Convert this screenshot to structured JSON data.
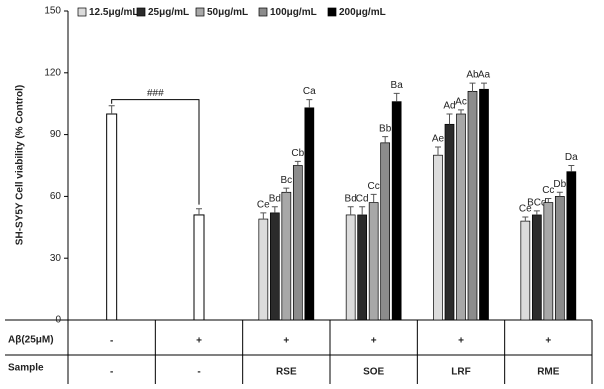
{
  "chart_data": {
    "type": "bar",
    "ylabel": "SH-SY5Y Cell viability (% Control)",
    "ylim": [
      0,
      150
    ],
    "yticks": [
      0,
      30,
      60,
      90,
      120,
      150
    ],
    "categories": [
      "-",
      "-",
      "RSE",
      "SOE",
      "LRF",
      "RME"
    ],
    "table": {
      "row_labels": [
        "Aβ(25μM)",
        "Sample"
      ],
      "abeta": [
        "-",
        "+",
        "+",
        "+",
        "+",
        "+"
      ]
    },
    "control": {
      "color": "#ffffff",
      "values": [
        100,
        51
      ],
      "errors": [
        4,
        3
      ]
    },
    "bracket_label": "###",
    "series": [
      {
        "name": "12.5μg/mL",
        "color": "#dcdcdc",
        "values": [
          null,
          null,
          49,
          51,
          80,
          48
        ],
        "errors": [
          null,
          null,
          3,
          4,
          4,
          2
        ],
        "letters": [
          null,
          null,
          "Ce",
          "Bd",
          "Ae",
          "Ce"
        ]
      },
      {
        "name": "25μg/mL",
        "color": "#2b2b2b",
        "values": [
          null,
          null,
          52,
          51,
          95,
          51
        ],
        "errors": [
          null,
          null,
          3,
          4,
          5,
          2
        ],
        "letters": [
          null,
          null,
          "Bd",
          "Cd",
          "Ad",
          "BCd"
        ]
      },
      {
        "name": "50μg/mL",
        "color": "#a8a8a8",
        "values": [
          null,
          null,
          62,
          57,
          100,
          57
        ],
        "errors": [
          null,
          null,
          2,
          4,
          2,
          2
        ],
        "letters": [
          null,
          null,
          "Bc",
          "Cc",
          "Ac",
          "Cc"
        ]
      },
      {
        "name": "100μg/mL",
        "color": "#8c8c8c",
        "values": [
          null,
          null,
          75,
          86,
          111,
          60
        ],
        "errors": [
          null,
          null,
          2,
          3,
          4,
          2
        ],
        "letters": [
          null,
          null,
          "Cb",
          "Bb",
          "Ab",
          "Db"
        ]
      },
      {
        "name": "200μg/mL",
        "color": "#000000",
        "values": [
          null,
          null,
          103,
          106,
          112,
          72
        ],
        "errors": [
          null,
          null,
          4,
          4,
          3,
          3
        ],
        "letters": [
          null,
          null,
          "Ca",
          "Ba",
          "Aa",
          "Da"
        ]
      }
    ]
  }
}
